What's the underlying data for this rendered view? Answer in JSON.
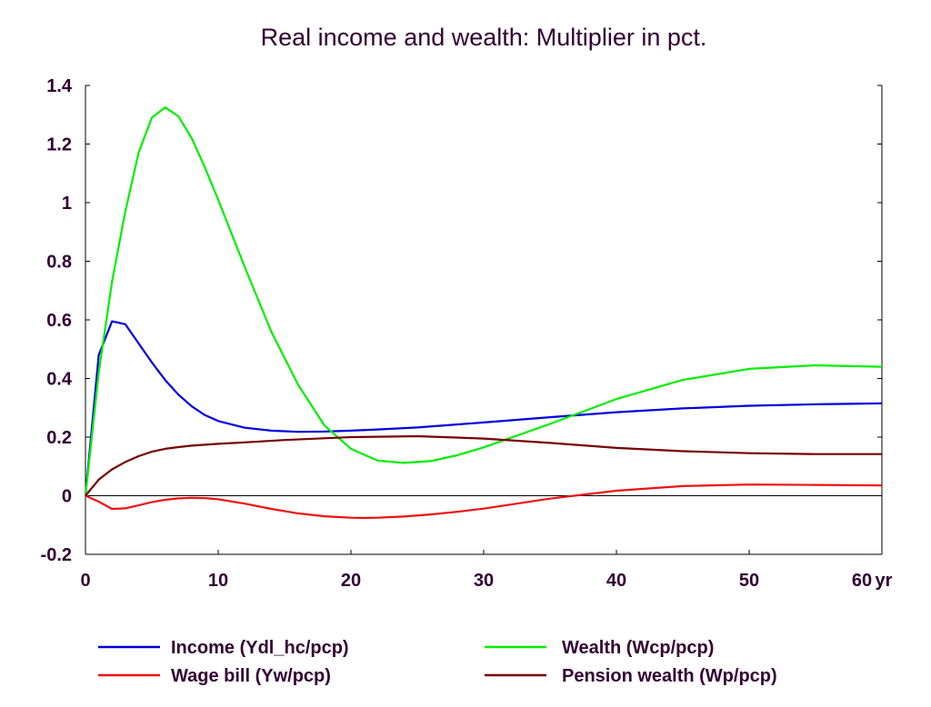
{
  "chart_data": {
    "type": "line",
    "title": "Real income and wealth: Multiplier in pct.",
    "xlabel": "",
    "ylabel": "",
    "x_unit_label": "yr",
    "xlim": [
      0,
      60
    ],
    "ylim": [
      -0.2,
      1.4
    ],
    "x_ticks": [
      0,
      10,
      20,
      30,
      40,
      50,
      60
    ],
    "x_tick_labels": [
      "0",
      "10",
      "20",
      "30",
      "40",
      "50",
      "60"
    ],
    "y_ticks": [
      -0.2,
      0,
      0.2,
      0.4,
      0.6,
      0.8,
      1,
      1.2,
      1.4
    ],
    "y_tick_labels": [
      "-0.2",
      "0",
      "0.2",
      "0.4",
      "0.6",
      "0.8",
      "1",
      "1.2",
      "1.4"
    ],
    "grid": false,
    "zero_line": true,
    "legend_position": "bottom",
    "series": [
      {
        "name": "Income (Ydl_hc/pcp)",
        "color": "#0000dd",
        "points": [
          [
            0,
            0
          ],
          [
            1,
            0.48
          ],
          [
            2,
            0.595
          ],
          [
            3,
            0.585
          ],
          [
            4,
            0.52
          ],
          [
            5,
            0.455
          ],
          [
            6,
            0.395
          ],
          [
            7,
            0.345
          ],
          [
            8,
            0.305
          ],
          [
            9,
            0.275
          ],
          [
            10,
            0.255
          ],
          [
            12,
            0.232
          ],
          [
            14,
            0.222
          ],
          [
            16,
            0.218
          ],
          [
            18,
            0.219
          ],
          [
            20,
            0.222
          ],
          [
            22,
            0.226
          ],
          [
            25,
            0.233
          ],
          [
            30,
            0.25
          ],
          [
            35,
            0.268
          ],
          [
            40,
            0.285
          ],
          [
            45,
            0.298
          ],
          [
            50,
            0.307
          ],
          [
            55,
            0.312
          ],
          [
            60,
            0.315
          ]
        ]
      },
      {
        "name": "Wealth (Wcp/pcp)",
        "color": "#00ee00",
        "points": [
          [
            0,
            0
          ],
          [
            1,
            0.42
          ],
          [
            2,
            0.73
          ],
          [
            3,
            0.97
          ],
          [
            4,
            1.17
          ],
          [
            5,
            1.29
          ],
          [
            6,
            1.325
          ],
          [
            7,
            1.295
          ],
          [
            8,
            1.22
          ],
          [
            9,
            1.12
          ],
          [
            10,
            1.01
          ],
          [
            12,
            0.78
          ],
          [
            14,
            0.56
          ],
          [
            16,
            0.38
          ],
          [
            18,
            0.24
          ],
          [
            20,
            0.16
          ],
          [
            22,
            0.12
          ],
          [
            24,
            0.112
          ],
          [
            26,
            0.118
          ],
          [
            28,
            0.138
          ],
          [
            30,
            0.165
          ],
          [
            35,
            0.245
          ],
          [
            40,
            0.33
          ],
          [
            45,
            0.395
          ],
          [
            50,
            0.433
          ],
          [
            55,
            0.445
          ],
          [
            60,
            0.44
          ]
        ]
      },
      {
        "name": "Wage bill (Yw/pcp)",
        "color": "#ee1111",
        "points": [
          [
            0,
            0
          ],
          [
            1,
            -0.02
          ],
          [
            2,
            -0.045
          ],
          [
            3,
            -0.043
          ],
          [
            4,
            -0.033
          ],
          [
            5,
            -0.022
          ],
          [
            6,
            -0.014
          ],
          [
            7,
            -0.009
          ],
          [
            8,
            -0.007
          ],
          [
            9,
            -0.008
          ],
          [
            10,
            -0.012
          ],
          [
            12,
            -0.027
          ],
          [
            14,
            -0.045
          ],
          [
            16,
            -0.06
          ],
          [
            18,
            -0.07
          ],
          [
            20,
            -0.075
          ],
          [
            21,
            -0.076
          ],
          [
            22,
            -0.075
          ],
          [
            24,
            -0.071
          ],
          [
            26,
            -0.064
          ],
          [
            28,
            -0.055
          ],
          [
            30,
            -0.044
          ],
          [
            35,
            -0.01
          ],
          [
            40,
            0.017
          ],
          [
            45,
            0.033
          ],
          [
            50,
            0.038
          ],
          [
            55,
            0.037
          ],
          [
            60,
            0.035
          ]
        ]
      },
      {
        "name": "Pension wealth (Wp/pcp)",
        "color": "#770000",
        "points": [
          [
            0,
            0
          ],
          [
            1,
            0.055
          ],
          [
            2,
            0.09
          ],
          [
            3,
            0.115
          ],
          [
            4,
            0.135
          ],
          [
            5,
            0.15
          ],
          [
            6,
            0.16
          ],
          [
            7,
            0.166
          ],
          [
            8,
            0.171
          ],
          [
            10,
            0.177
          ],
          [
            12,
            0.182
          ],
          [
            15,
            0.19
          ],
          [
            20,
            0.2
          ],
          [
            25,
            0.203
          ],
          [
            30,
            0.195
          ],
          [
            35,
            0.18
          ],
          [
            40,
            0.163
          ],
          [
            45,
            0.152
          ],
          [
            50,
            0.145
          ],
          [
            55,
            0.142
          ],
          [
            60,
            0.142
          ]
        ]
      }
    ]
  }
}
